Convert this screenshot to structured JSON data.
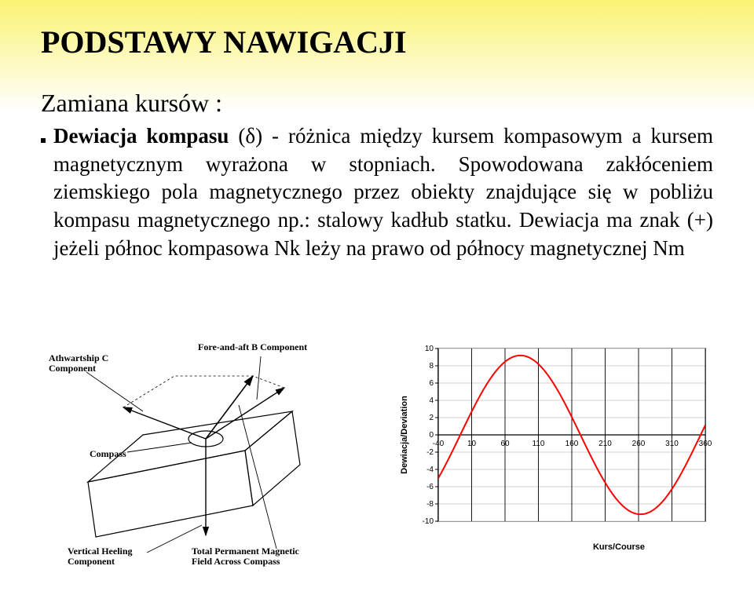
{
  "page": {
    "title": "PODSTAWY NAWIGACJI",
    "title_fontsize": 40,
    "subtitle": "Zamiana kursów :",
    "subtitle_fontsize": 32,
    "bullet_font": "bold",
    "deviation_term": "Dewiacja kompasu",
    "deviation_symbol": " (δ)",
    "body_fontsize": 27,
    "body_text": " - różnica między kursem kompasowym a kursem magnetycznym wyrażona w stopniach. Spowodowana zakłóceniem ziemskiego pola magnetycznego przez obiekty znajdujące się w pobliżu kompasu magnetycznego np.: stalowy kadłub statku. Dewiacja ma znak (+) jeżeli północ kompasowa Nk leży na prawo od północy magnetycznej Nm",
    "gradient_top": "#fbf373",
    "gradient_bottom": "#ffffff"
  },
  "diagram": {
    "labels": {
      "athwart": "Athwartship C\nComponent",
      "fore_aft": "Fore-and-aft B Component",
      "compass": "Compass",
      "heeling": "Vertical Heeling\nComponent",
      "total": "Total Permanent Magnetic\nField Across Compass"
    },
    "label_fontsize": 12,
    "line_color": "#000000",
    "arrow_color": "#000000"
  },
  "chart": {
    "type": "line",
    "x_label": "Kurs/Course",
    "y_label": "Dewiacja/Deviation",
    "label_fontsize": 11,
    "x_min": -40,
    "x_max": 360,
    "x_ticks": [
      -40,
      10,
      60,
      110,
      160,
      210,
      260,
      310,
      360
    ],
    "y_min": -10,
    "y_max": 10,
    "y_ticks": [
      -10,
      -8,
      -6,
      -4,
      -2,
      0,
      2,
      4,
      6,
      8,
      10
    ],
    "tick_fontsize": 10,
    "amplitude": 9.2,
    "phase_deg": -7,
    "period_deg": 360,
    "grid_major_x": true,
    "grid_color_major": "#000000",
    "grid_color_minor": "#c0c0c0",
    "axis_color": "#000000",
    "line_color": "#ff0000",
    "line_width": 2,
    "background_color": "#ffffff",
    "plot_border_color": "#808080"
  }
}
